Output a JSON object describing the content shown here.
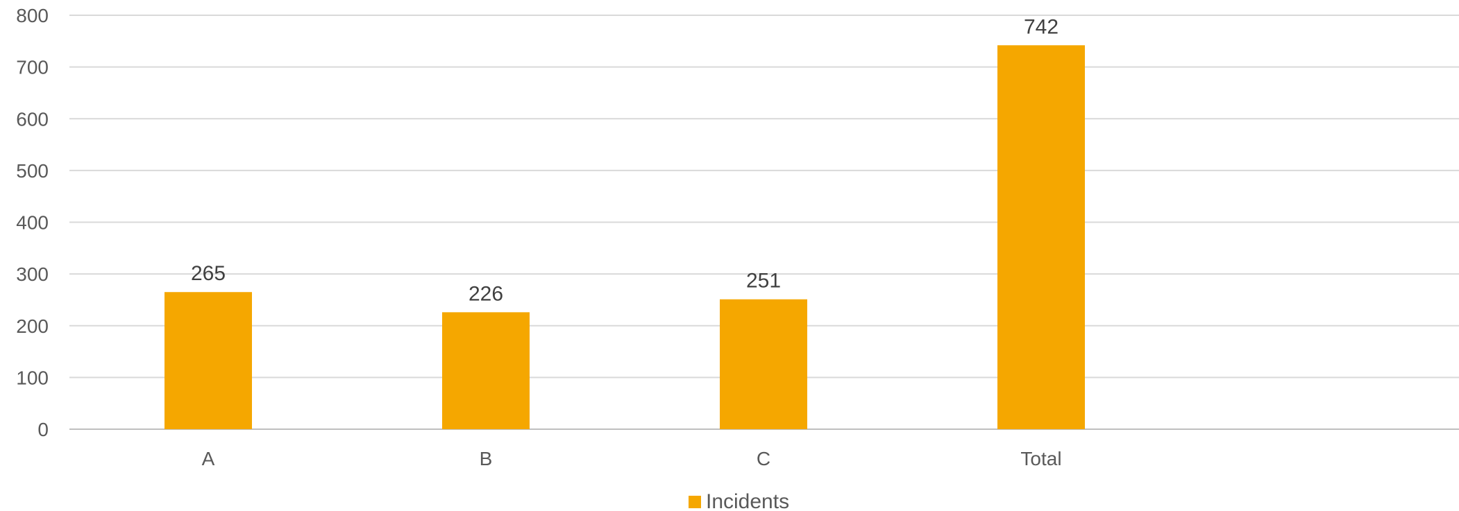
{
  "chart_data": {
    "type": "bar",
    "categories": [
      "A",
      "B",
      "C",
      "Total"
    ],
    "series": [
      {
        "name": "Incidents",
        "values": [
          265,
          226,
          251,
          742
        ],
        "color": "#F5A700"
      }
    ],
    "data_labels": [
      "265",
      "226",
      "251",
      "742"
    ],
    "y_ticks": [
      "0",
      "100",
      "200",
      "300",
      "400",
      "500",
      "600",
      "700",
      "800"
    ],
    "ylim": [
      0,
      800
    ],
    "grid": true,
    "legend_position": "bottom",
    "title": "",
    "xlabel": "",
    "ylabel": ""
  }
}
